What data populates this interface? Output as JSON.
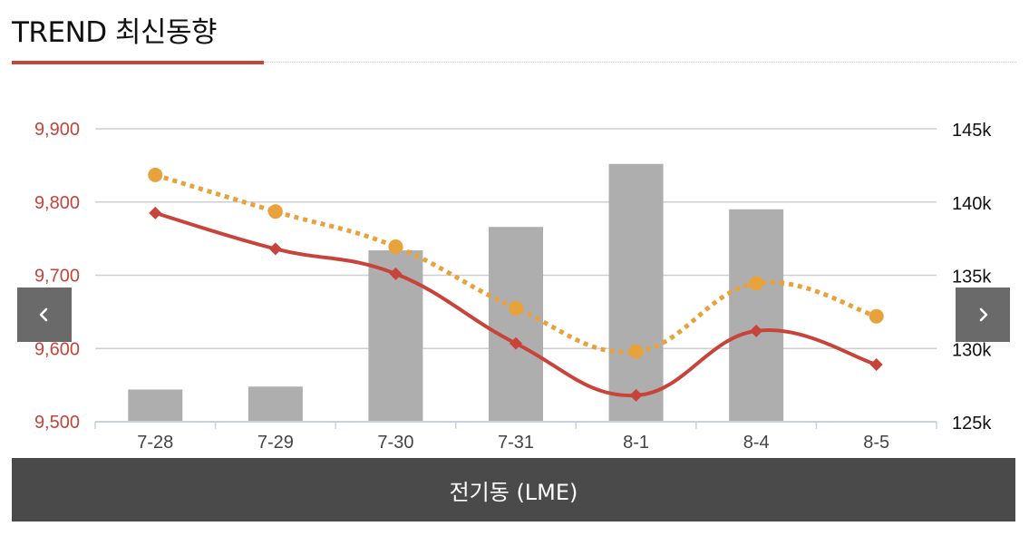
{
  "header": {
    "title": "TREND 최신동향"
  },
  "nav": {
    "prev_icon": "chevron-left-icon",
    "next_icon": "chevron-right-icon"
  },
  "footer": {
    "label": "전기동 (LME)"
  },
  "colors": {
    "accent": "#c8433a",
    "line_primary": "#c8433a",
    "line_secondary": "#e8a23c",
    "bars": "#aeaeae",
    "left_axis_text": "#c0463d",
    "footer_bg": "#4a4a4a",
    "nav_bg": "#6a6a6a"
  },
  "chart_data": {
    "type": "bar",
    "categories": [
      "7-28",
      "7-29",
      "7-30",
      "7-31",
      "8-1",
      "8-4",
      "8-5"
    ],
    "y_left": {
      "ticks": [
        "9,900",
        "9,800",
        "9,700",
        "9,600",
        "9,500"
      ],
      "ylim": [
        9500,
        9900
      ]
    },
    "y_right": {
      "ticks": [
        "145k",
        "140k",
        "135k",
        "130k",
        "125k"
      ],
      "ylim": [
        125000,
        145000
      ]
    },
    "grid": true,
    "series": [
      {
        "type": "bar",
        "axis": "right",
        "values": [
          127200,
          127400,
          136700,
          138300,
          142600,
          139500,
          null
        ]
      },
      {
        "type": "line",
        "axis": "left",
        "style": "solid",
        "marker": "diamond",
        "values": [
          9785,
          9736,
          9702,
          9607,
          9536,
          9624,
          9578
        ]
      },
      {
        "type": "line",
        "axis": "left",
        "style": "dotted",
        "marker": "circle",
        "values": [
          9837,
          9787,
          9739,
          9655,
          9596,
          9689,
          9644
        ]
      }
    ]
  }
}
